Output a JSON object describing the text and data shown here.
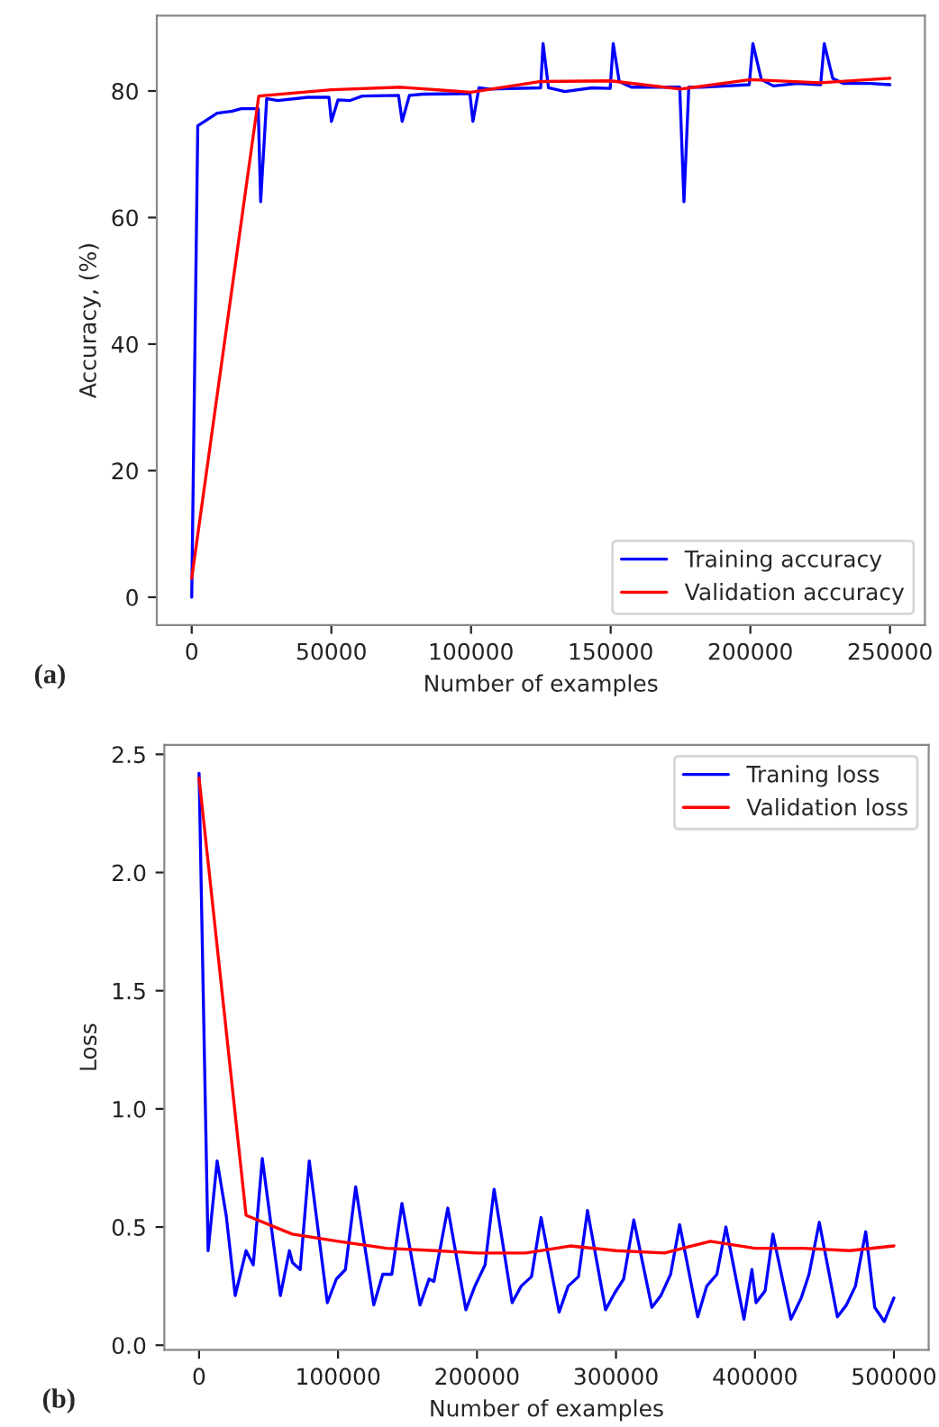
{
  "chart_data": [
    {
      "type": "line",
      "xlabel": "Number of examples",
      "ylabel": "Accuracy, (%)",
      "annotations": [
        "(a)"
      ],
      "legend": "bottom right",
      "grid": false,
      "xlim": [
        -12500,
        262500
      ],
      "xticks": [
        0,
        50000,
        100000,
        150000,
        200000,
        250000
      ],
      "ylim": [
        -4.4,
        91.9
      ],
      "yticks": [
        0,
        20,
        40,
        60,
        80
      ],
      "series": [
        {
          "name": "Training accuracy",
          "color": "#0000ff",
          "x": [
            0,
            2165,
            9093,
            14500,
            17753,
            23815,
            24680,
            26845,
            30742,
            41568,
            49145,
            50011,
            52393,
            56723,
            61053,
            74043,
            75342,
            77940,
            82703,
            99590,
            100673,
            102838,
            106519,
            124920,
            125786,
            127735,
            133580,
            143323,
            149818,
            150900,
            153066,
            157396,
            174716,
            176231,
            177963,
            182293,
            199613,
            200912,
            203943,
            208273,
            216933,
            225160,
            226459,
            229490,
            233170,
            242913,
            250000
          ],
          "values": [
            0,
            74.5,
            76.5,
            76.8,
            77.2,
            77.2,
            62.5,
            78.8,
            78.5,
            79.0,
            79.0,
            75.2,
            78.6,
            78.5,
            79.2,
            79.3,
            75.2,
            79.3,
            79.5,
            79.6,
            75.2,
            80.5,
            80.3,
            80.5,
            87.5,
            80.5,
            79.9,
            80.5,
            80.4,
            87.5,
            81.5,
            80.6,
            80.6,
            62.5,
            80.6,
            80.6,
            81.0,
            87.5,
            81.8,
            80.8,
            81.2,
            81.0,
            87.5,
            82.0,
            81.2,
            81.2,
            81.0
          ]
        },
        {
          "name": "Validation accuracy",
          "color": "#ff0000",
          "x": [
            0,
            24000,
            50000,
            75000,
            100000,
            125000,
            150000,
            175000,
            200000,
            225000,
            250000
          ],
          "values": [
            3,
            79.2,
            80.2,
            80.6,
            79.8,
            81.5,
            81.6,
            80.3,
            81.8,
            81.3,
            82.0
          ]
        }
      ]
    },
    {
      "type": "line",
      "xlabel": "Number of examples",
      "ylabel": "Loss",
      "annotations": [
        "(b)"
      ],
      "legend": "top right",
      "grid": false,
      "xlim": [
        -25000,
        525000
      ],
      "xticks": [
        0,
        100000,
        200000,
        300000,
        400000,
        500000
      ],
      "ylim": [
        -0.02,
        2.54
      ],
      "yticks": [
        {
          "value": 0,
          "label": "0.0"
        },
        0.5,
        {
          "value": 1,
          "label": "1.0"
        },
        1.5,
        {
          "value": 2,
          "label": "2.0"
        },
        2.5
      ],
      "series": [
        {
          "name": "Traning loss",
          "color": "#0000ff",
          "x": [
            0,
            6500,
            13000,
            19500,
            26000,
            33800,
            39000,
            45500,
            58500,
            65000,
            67200,
            72800,
            79300,
            92300,
            98800,
            105300,
            112700,
            125700,
            132200,
            138700,
            146000,
            159000,
            165500,
            169000,
            179000,
            192000,
            198500,
            205800,
            212300,
            225300,
            231800,
            239200,
            246100,
            259100,
            265600,
            273000,
            279500,
            292500,
            299000,
            305500,
            312800,
            325800,
            332300,
            339300,
            345800,
            358800,
            365300,
            372600,
            379100,
            392100,
            397800,
            400800,
            407300,
            412900,
            425900,
            433300,
            438900,
            446300,
            459300,
            465800,
            472300,
            479700,
            486200,
            493100,
            500000
          ],
          "values": [
            2.42,
            0.4,
            0.78,
            0.55,
            0.21,
            0.4,
            0.34,
            0.79,
            0.21,
            0.4,
            0.35,
            0.32,
            0.78,
            0.18,
            0.28,
            0.32,
            0.67,
            0.17,
            0.3,
            0.3,
            0.6,
            0.17,
            0.28,
            0.27,
            0.58,
            0.15,
            0.25,
            0.34,
            0.66,
            0.18,
            0.25,
            0.29,
            0.54,
            0.14,
            0.25,
            0.29,
            0.57,
            0.15,
            0.22,
            0.28,
            0.53,
            0.16,
            0.21,
            0.3,
            0.51,
            0.12,
            0.25,
            0.3,
            0.5,
            0.11,
            0.32,
            0.18,
            0.23,
            0.47,
            0.11,
            0.2,
            0.3,
            0.52,
            0.12,
            0.17,
            0.25,
            0.48,
            0.16,
            0.1,
            0.2
          ]
        },
        {
          "name": "Validation loss",
          "color": "#ff0000",
          "x": [
            0,
            33800,
            67000,
            100000,
            135000,
            170000,
            200000,
            235000,
            267000,
            300000,
            335000,
            368000,
            400000,
            435000,
            468000,
            500000
          ],
          "values": [
            2.4,
            0.55,
            0.47,
            0.44,
            0.41,
            0.4,
            0.39,
            0.39,
            0.42,
            0.4,
            0.39,
            0.44,
            0.41,
            0.41,
            0.4,
            0.42
          ]
        }
      ]
    }
  ]
}
